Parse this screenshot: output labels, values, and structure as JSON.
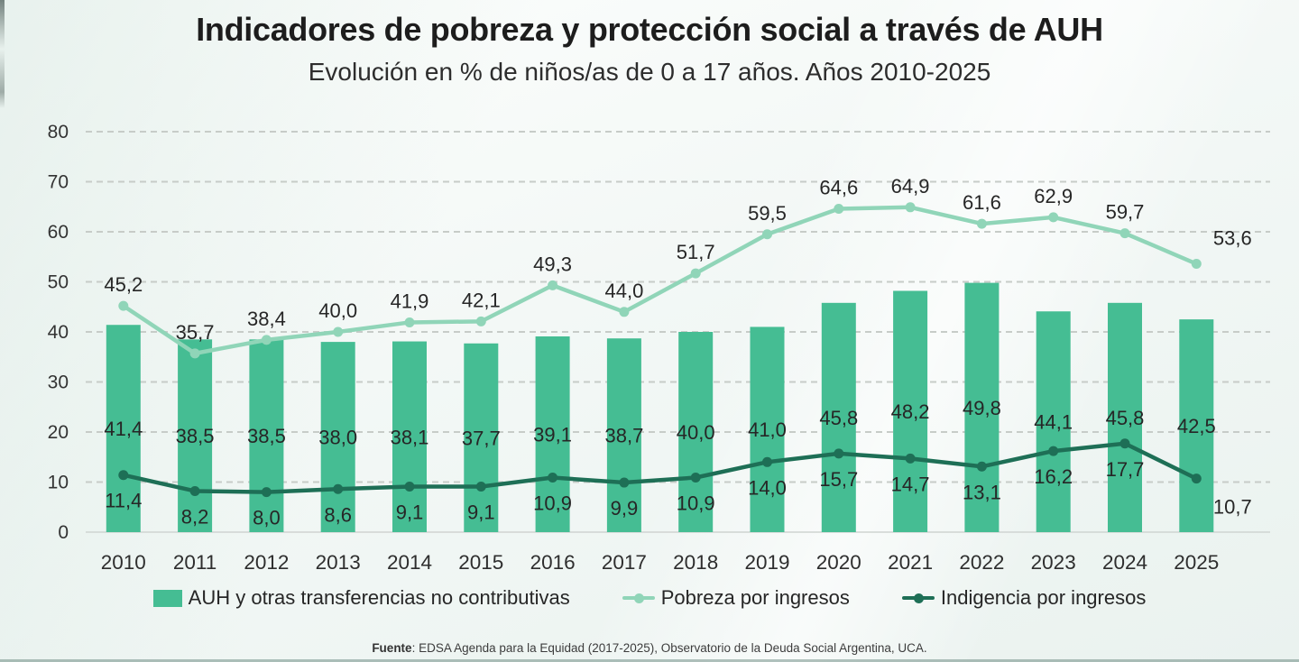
{
  "header": {
    "title": "Indicadores de pobreza y protección social a través de AUH",
    "subtitle": "Evolución en % de niños/as de 0 a 17 años. Años 2010-2025"
  },
  "chart_data": {
    "type": "bar+line combo",
    "categories": [
      "2010",
      "2011",
      "2012",
      "2013",
      "2014",
      "2015",
      "2016",
      "2017",
      "2018",
      "2019",
      "2020",
      "2021",
      "2022",
      "2023",
      "2024",
      "2025"
    ],
    "series": [
      {
        "name": "AUH y otras transferencias no contributivas",
        "type": "bar",
        "color": "#45bd93",
        "values": [
          41.4,
          38.5,
          38.5,
          38.0,
          38.1,
          37.7,
          39.1,
          38.7,
          40.0,
          41.0,
          45.8,
          48.2,
          49.8,
          44.1,
          45.8,
          42.5
        ]
      },
      {
        "name": "Pobreza por ingresos",
        "type": "line",
        "color": "#90d5b8",
        "values": [
          45.2,
          35.7,
          38.4,
          40.0,
          41.9,
          42.1,
          49.3,
          44.0,
          51.7,
          59.5,
          64.6,
          64.9,
          61.6,
          62.9,
          59.7,
          53.6
        ]
      },
      {
        "name": "Indigencia por ingresos",
        "type": "line",
        "color": "#1e6f56",
        "values": [
          11.4,
          8.2,
          8.0,
          8.6,
          9.1,
          9.1,
          10.9,
          9.9,
          10.9,
          14.0,
          15.7,
          14.7,
          13.1,
          16.2,
          17.7,
          10.7
        ]
      }
    ],
    "ylim": [
      0,
      80
    ],
    "ytick_step": 10,
    "yticks": [
      0,
      10,
      20,
      30,
      40,
      50,
      60,
      70,
      80
    ],
    "grid": "horizontal dashed",
    "legend_position": "bottom",
    "decimal_separator": ",",
    "value_labels": "shown"
  },
  "footer": {
    "source_label": "Fuente",
    "source_text": ": EDSA Agenda para la Equidad (2017-2025), Observatorio de la Deuda Social Argentina, UCA."
  },
  "colors": {
    "bar": "#45bd93",
    "pobreza_line": "#90d5b8",
    "indigencia_line": "#1e6f56",
    "grid": "#c7ccc8",
    "label_text": "#262626",
    "background_tint": "#eaf2ef"
  }
}
